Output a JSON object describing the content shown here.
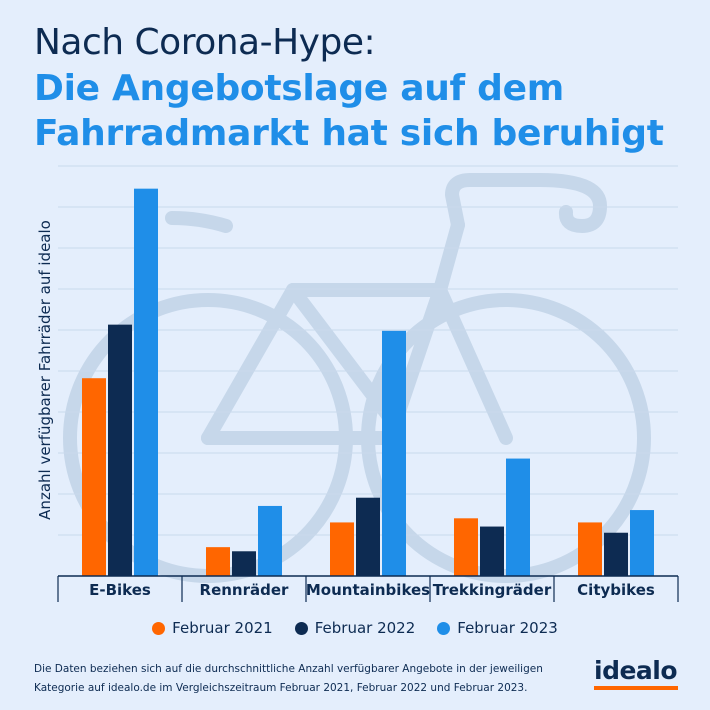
{
  "title": {
    "line1": "Nach Corona-Hype:",
    "line2": "Die Angebotslage auf dem",
    "line3": "Fahrradmarkt hat sich beruhigt"
  },
  "colors": {
    "background": "#e4eefc",
    "feb2021": "#ff6600",
    "feb2022": "#0d2b52",
    "feb2023": "#1f8ee8",
    "title_dark": "#0d2b52",
    "title_blue": "#1f8ee8"
  },
  "chart_data": {
    "type": "bar",
    "title": "Nach Corona-Hype: Die Angebotslage auf dem Fahrradmarkt hat sich beruhigt",
    "xlabel": "",
    "ylabel": "Anzahl verfügbarer Fahrräder auf idealo",
    "ylim": [
      0,
      9
    ],
    "grid": true,
    "legend_position": "bottom",
    "categories": [
      "E-Bikes",
      "Rennräder",
      "Mountainbikes",
      "Trekkingräder",
      "Citybikes"
    ],
    "series": [
      {
        "name": "Februar 2021",
        "color": "#ff6600",
        "values": [
          4.8,
          0.7,
          1.3,
          1.4,
          1.3
        ]
      },
      {
        "name": "Februar 2022",
        "color": "#0d2b52",
        "values": [
          6.1,
          0.6,
          1.9,
          1.2,
          1.05
        ]
      },
      {
        "name": "Februar 2023",
        "color": "#1f8ee8",
        "values": [
          9.4,
          1.7,
          5.95,
          2.85,
          1.6
        ]
      }
    ]
  },
  "footnote": "Die Daten beziehen sich auf die durchschnittliche Anzahl verfügbarer Angebote in der jeweiligen Kategorie auf idealo.de im Vergleichszeitraum Februar 2021, Februar 2022 und Februar 2023.",
  "logo": "idealo"
}
